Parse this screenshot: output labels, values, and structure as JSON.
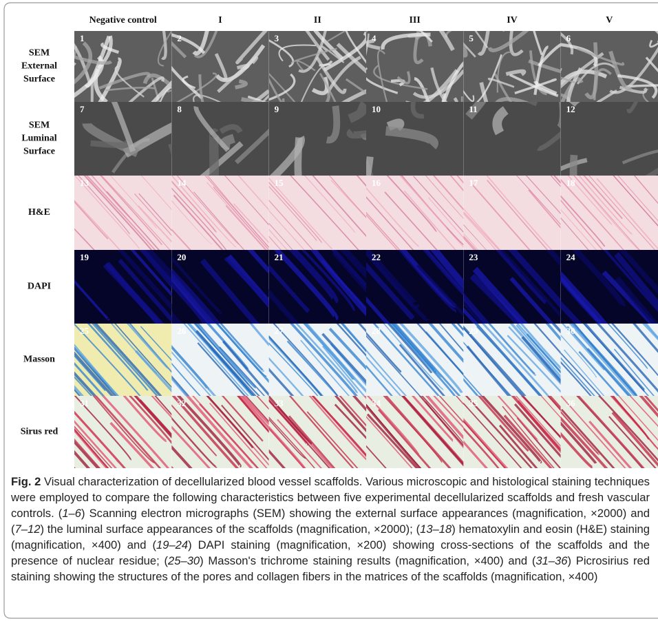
{
  "figure": {
    "columns": [
      "Negative control",
      "I",
      "II",
      "III",
      "IV",
      "V"
    ],
    "rows": [
      {
        "label": [
          "SEM",
          "External",
          "Surface"
        ],
        "panels": [
          "1",
          "2",
          "3",
          "4",
          "5",
          "6"
        ]
      },
      {
        "label": [
          "SEM",
          "Luminal",
          "Surface"
        ],
        "panels": [
          "7",
          "8",
          "9",
          "10",
          "11",
          "12"
        ]
      },
      {
        "label": [
          "H&E"
        ],
        "panels": [
          "13",
          "14",
          "15",
          "16",
          "17",
          "18"
        ]
      },
      {
        "label": [
          "DAPI"
        ],
        "panels": [
          "19",
          "20",
          "21",
          "22",
          "23",
          "24"
        ]
      },
      {
        "label": [
          "Masson"
        ],
        "panels": [
          "25",
          "26",
          "27",
          "28",
          "29",
          "30"
        ]
      },
      {
        "label": [
          "Sirus red"
        ],
        "panels": [
          "31",
          "32",
          "33",
          "34",
          "35",
          "36"
        ]
      }
    ]
  },
  "caption": {
    "label": "Fig. 2",
    "runs": [
      {
        "text": " Visual characterization of decellularized blood vessel scaffolds. Various microscopic and histological staining techniques were employed to compare the following characteristics between five experimental decellularized scaffolds and fresh vascular controls. ("
      },
      {
        "text": "1–6",
        "italic": true
      },
      {
        "text": ") Scanning electron micrographs (SEM) showing the external surface appearances (magnification, ×2000) and ("
      },
      {
        "text": "7–12",
        "italic": true
      },
      {
        "text": ") the luminal surface appearances of the scaffolds (magnification, ×2000); ("
      },
      {
        "text": "13–18",
        "italic": true
      },
      {
        "text": ") hematoxylin and eosin (H&E) staining (magnification, ×400) and ("
      },
      {
        "text": "19–24",
        "italic": true
      },
      {
        "text": ") DAPI staining (magnification, ×200) showing cross-sections of the scaffolds and the presence of nuclear residue; ("
      },
      {
        "text": "25–30",
        "italic": true
      },
      {
        "text": ") Masson's trichrome staining results (magnification, ×400) and ("
      },
      {
        "text": "31–36",
        "italic": true
      },
      {
        "text": ") Picrosirius red staining showing the structures of the pores and collagen fibers in the matrices of the scaffolds (magnification, ×400)"
      }
    ]
  }
}
